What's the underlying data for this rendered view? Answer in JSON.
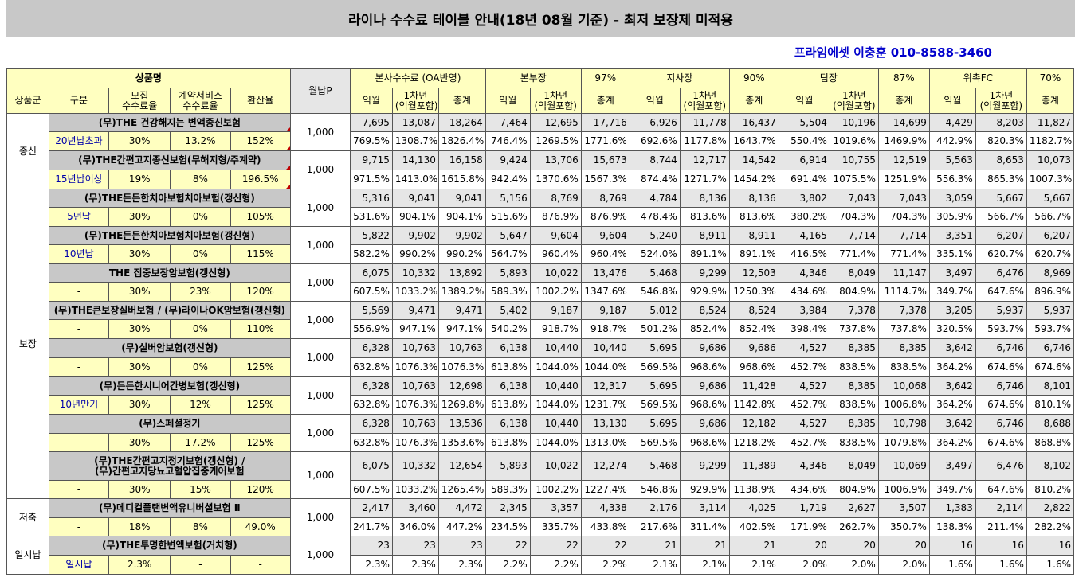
{
  "title": "라이나 수수료 테이블 안내(18년 08월 기준) - 최저 보장제 미적용",
  "contact": "프라임에셋 이충훈 010-8588-3460",
  "header": {
    "product_name": "상품명",
    "monthly_p": "월납P",
    "col_group": "상품군",
    "col_type": "구분",
    "col_recruit": "모집\n수수료율",
    "col_contract": "계약서비스\n수수료율",
    "col_conv": "환산율",
    "tiers": [
      {
        "name": "본사수수료 (OA반영)",
        "pct": ""
      },
      {
        "name": "본부장",
        "pct": "97%"
      },
      {
        "name": "지사장",
        "pct": "90%"
      },
      {
        "name": "팀장",
        "pct": "87%"
      },
      {
        "name": "위촉FC",
        "pct": "70%"
      }
    ],
    "sub_cols": [
      "익월",
      "1차년\n(익월포함)",
      "총계"
    ]
  },
  "groups": [
    {
      "name": "종신",
      "rows": 4
    },
    {
      "name": "보장",
      "rows": 16
    },
    {
      "name": "저축",
      "rows": 2
    },
    {
      "name": "일시납",
      "rows": 2
    }
  ],
  "products": [
    {
      "name": "(무)THE 건강해지는 변액종신보험",
      "type": "20년납초과",
      "recruit": "30%",
      "contract": "13.2%",
      "conv": "152%",
      "monthly": "1,000",
      "amounts": [
        "7,695",
        "13,087",
        "18,264",
        "7,464",
        "12,695",
        "17,716",
        "6,926",
        "11,778",
        "16,437",
        "5,504",
        "10,196",
        "14,699",
        "4,429",
        "8,203",
        "11,827"
      ],
      "rates": [
        "769.5%",
        "1308.7%",
        "1826.4%",
        "746.4%",
        "1269.5%",
        "1771.6%",
        "692.6%",
        "1177.8%",
        "1643.7%",
        "550.4%",
        "1019.6%",
        "1469.9%",
        "442.9%",
        "820.3%",
        "1182.7%"
      ]
    },
    {
      "name": "(무)THE간편고지종신보험(무해지형/주계약)",
      "type": "15년납이상",
      "recruit": "19%",
      "contract": "8%",
      "conv": "196.5%",
      "monthly": "1,000",
      "amounts": [
        "9,715",
        "14,130",
        "16,158",
        "9,424",
        "13,706",
        "15,673",
        "8,744",
        "12,717",
        "14,542",
        "6,914",
        "10,755",
        "12,519",
        "5,563",
        "8,653",
        "10,073"
      ],
      "rates": [
        "971.5%",
        "1413.0%",
        "1615.8%",
        "942.4%",
        "1370.6%",
        "1567.3%",
        "874.4%",
        "1271.7%",
        "1454.2%",
        "691.4%",
        "1075.5%",
        "1251.9%",
        "556.3%",
        "865.3%",
        "1007.3%"
      ]
    },
    {
      "name": "(무)THE든든한치아보험치아보험(갱신형)",
      "type": "5년납",
      "recruit": "30%",
      "contract": "0%",
      "conv": "105%",
      "monthly": "1,000",
      "amounts": [
        "5,316",
        "9,041",
        "9,041",
        "5,156",
        "8,769",
        "8,769",
        "4,784",
        "8,136",
        "8,136",
        "3,802",
        "7,043",
        "7,043",
        "3,059",
        "5,667",
        "5,667"
      ],
      "rates": [
        "531.6%",
        "904.1%",
        "904.1%",
        "515.6%",
        "876.9%",
        "876.9%",
        "478.4%",
        "813.6%",
        "813.6%",
        "380.2%",
        "704.3%",
        "704.3%",
        "305.9%",
        "566.7%",
        "566.7%"
      ]
    },
    {
      "name": "(무)THE든든한치아보험치아보험(갱신형)",
      "type": "10년납",
      "recruit": "30%",
      "contract": "0%",
      "conv": "115%",
      "monthly": "1,000",
      "amounts": [
        "5,822",
        "9,902",
        "9,902",
        "5,647",
        "9,604",
        "9,604",
        "5,240",
        "8,911",
        "8,911",
        "4,165",
        "7,714",
        "7,714",
        "3,351",
        "6,207",
        "6,207"
      ],
      "rates": [
        "582.2%",
        "990.2%",
        "990.2%",
        "564.7%",
        "960.4%",
        "960.4%",
        "524.0%",
        "891.1%",
        "891.1%",
        "416.5%",
        "771.4%",
        "771.4%",
        "335.1%",
        "620.7%",
        "620.7%"
      ]
    },
    {
      "name": "THE 집중보장암보험(갱신형)",
      "type": "-",
      "recruit": "30%",
      "contract": "23%",
      "conv": "120%",
      "monthly": "1,000",
      "amounts": [
        "6,075",
        "10,332",
        "13,892",
        "5,893",
        "10,022",
        "13,476",
        "5,468",
        "9,299",
        "12,503",
        "4,346",
        "8,049",
        "11,147",
        "3,497",
        "6,476",
        "8,969"
      ],
      "rates": [
        "607.5%",
        "1033.2%",
        "1389.2%",
        "589.3%",
        "1002.2%",
        "1347.6%",
        "546.8%",
        "929.9%",
        "1250.3%",
        "434.6%",
        "804.9%",
        "1114.7%",
        "349.7%",
        "647.6%",
        "896.9%"
      ]
    },
    {
      "name": "(무)THE큰보장실버보험 / (무)라이나OK암보험(갱신형)",
      "type": "-",
      "recruit": "30%",
      "contract": "0%",
      "conv": "110%",
      "monthly": "1,000",
      "amounts": [
        "5,569",
        "9,471",
        "9,471",
        "5,402",
        "9,187",
        "9,187",
        "5,012",
        "8,524",
        "8,524",
        "3,984",
        "7,378",
        "7,378",
        "3,205",
        "5,937",
        "5,937"
      ],
      "rates": [
        "556.9%",
        "947.1%",
        "947.1%",
        "540.2%",
        "918.7%",
        "918.7%",
        "501.2%",
        "852.4%",
        "852.4%",
        "398.4%",
        "737.8%",
        "737.8%",
        "320.5%",
        "593.7%",
        "593.7%"
      ]
    },
    {
      "name": "(무)실버암보험(갱신형)",
      "type": "-",
      "recruit": "30%",
      "contract": "0%",
      "conv": "125%",
      "monthly": "1,000",
      "amounts": [
        "6,328",
        "10,763",
        "10,763",
        "6,138",
        "10,440",
        "10,440",
        "5,695",
        "9,686",
        "9,686",
        "4,527",
        "8,385",
        "8,385",
        "3,642",
        "6,746",
        "6,746"
      ],
      "rates": [
        "632.8%",
        "1076.3%",
        "1076.3%",
        "613.8%",
        "1044.0%",
        "1044.0%",
        "569.5%",
        "968.6%",
        "968.6%",
        "452.7%",
        "838.5%",
        "838.5%",
        "364.2%",
        "674.6%",
        "674.6%"
      ]
    },
    {
      "name": "(무)든든한시니어간병보험(갱신형)",
      "type": "10년만기",
      "recruit": "30%",
      "contract": "12%",
      "conv": "125%",
      "monthly": "1,000",
      "amounts": [
        "6,328",
        "10,763",
        "12,698",
        "6,138",
        "10,440",
        "12,317",
        "5,695",
        "9,686",
        "11,428",
        "4,527",
        "8,385",
        "10,068",
        "3,642",
        "6,746",
        "8,101"
      ],
      "rates": [
        "632.8%",
        "1076.3%",
        "1269.8%",
        "613.8%",
        "1044.0%",
        "1231.7%",
        "569.5%",
        "968.6%",
        "1142.8%",
        "452.7%",
        "838.5%",
        "1006.8%",
        "364.2%",
        "674.6%",
        "810.1%"
      ]
    },
    {
      "name": "(무)스페셜정기",
      "type": "-",
      "recruit": "30%",
      "contract": "17.2%",
      "conv": "125%",
      "monthly": "1,000",
      "amounts": [
        "6,328",
        "10,763",
        "13,536",
        "6,138",
        "10,440",
        "13,130",
        "5,695",
        "9,686",
        "12,182",
        "4,527",
        "8,385",
        "10,798",
        "3,642",
        "6,746",
        "8,688"
      ],
      "rates": [
        "632.8%",
        "1076.3%",
        "1353.6%",
        "613.8%",
        "1044.0%",
        "1313.0%",
        "569.5%",
        "968.6%",
        "1218.2%",
        "452.7%",
        "838.5%",
        "1079.8%",
        "364.2%",
        "674.6%",
        "868.8%"
      ]
    },
    {
      "name": "(무)THE간편고지정기보험(갱신형) /\n(무)간편고지당뇨고혈압집중케어보험",
      "type": "-",
      "recruit": "30%",
      "contract": "15%",
      "conv": "120%",
      "monthly": "1,000",
      "amounts": [
        "6,075",
        "10,332",
        "12,654",
        "5,893",
        "10,022",
        "12,274",
        "5,468",
        "9,299",
        "11,389",
        "4,346",
        "8,049",
        "10,069",
        "3,497",
        "6,476",
        "8,102"
      ],
      "rates": [
        "607.5%",
        "1033.2%",
        "1265.4%",
        "589.3%",
        "1002.2%",
        "1227.4%",
        "546.8%",
        "929.9%",
        "1138.9%",
        "434.6%",
        "804.9%",
        "1006.9%",
        "349.7%",
        "647.6%",
        "810.2%"
      ]
    },
    {
      "name": "(무)메디컬플랜변액유니버셜보험 Ⅱ",
      "type": "-",
      "recruit": "18%",
      "contract": "8%",
      "conv": "49.0%",
      "monthly": "1,000",
      "amounts": [
        "2,417",
        "3,460",
        "4,472",
        "2,345",
        "3,357",
        "4,338",
        "2,176",
        "3,114",
        "4,025",
        "1,719",
        "2,627",
        "3,507",
        "1,383",
        "2,114",
        "2,822"
      ],
      "rates": [
        "241.7%",
        "346.0%",
        "447.2%",
        "234.5%",
        "335.7%",
        "433.8%",
        "217.6%",
        "311.4%",
        "402.5%",
        "171.9%",
        "262.7%",
        "350.7%",
        "138.3%",
        "211.4%",
        "282.2%"
      ]
    },
    {
      "name": "(무)THE투명한변액보험(거치형)",
      "type": "일시납",
      "recruit": "2.3%",
      "contract": "-",
      "conv": "-",
      "monthly": "1,000",
      "amounts": [
        "23",
        "23",
        "23",
        "22",
        "22",
        "22",
        "21",
        "21",
        "21",
        "20",
        "20",
        "20",
        "16",
        "16",
        "16"
      ],
      "rates": [
        "2.3%",
        "2.3%",
        "2.3%",
        "2.2%",
        "2.2%",
        "2.2%",
        "2.1%",
        "2.1%",
        "2.1%",
        "2.0%",
        "2.0%",
        "2.0%",
        "1.6%",
        "1.6%",
        "1.6%"
      ]
    }
  ]
}
